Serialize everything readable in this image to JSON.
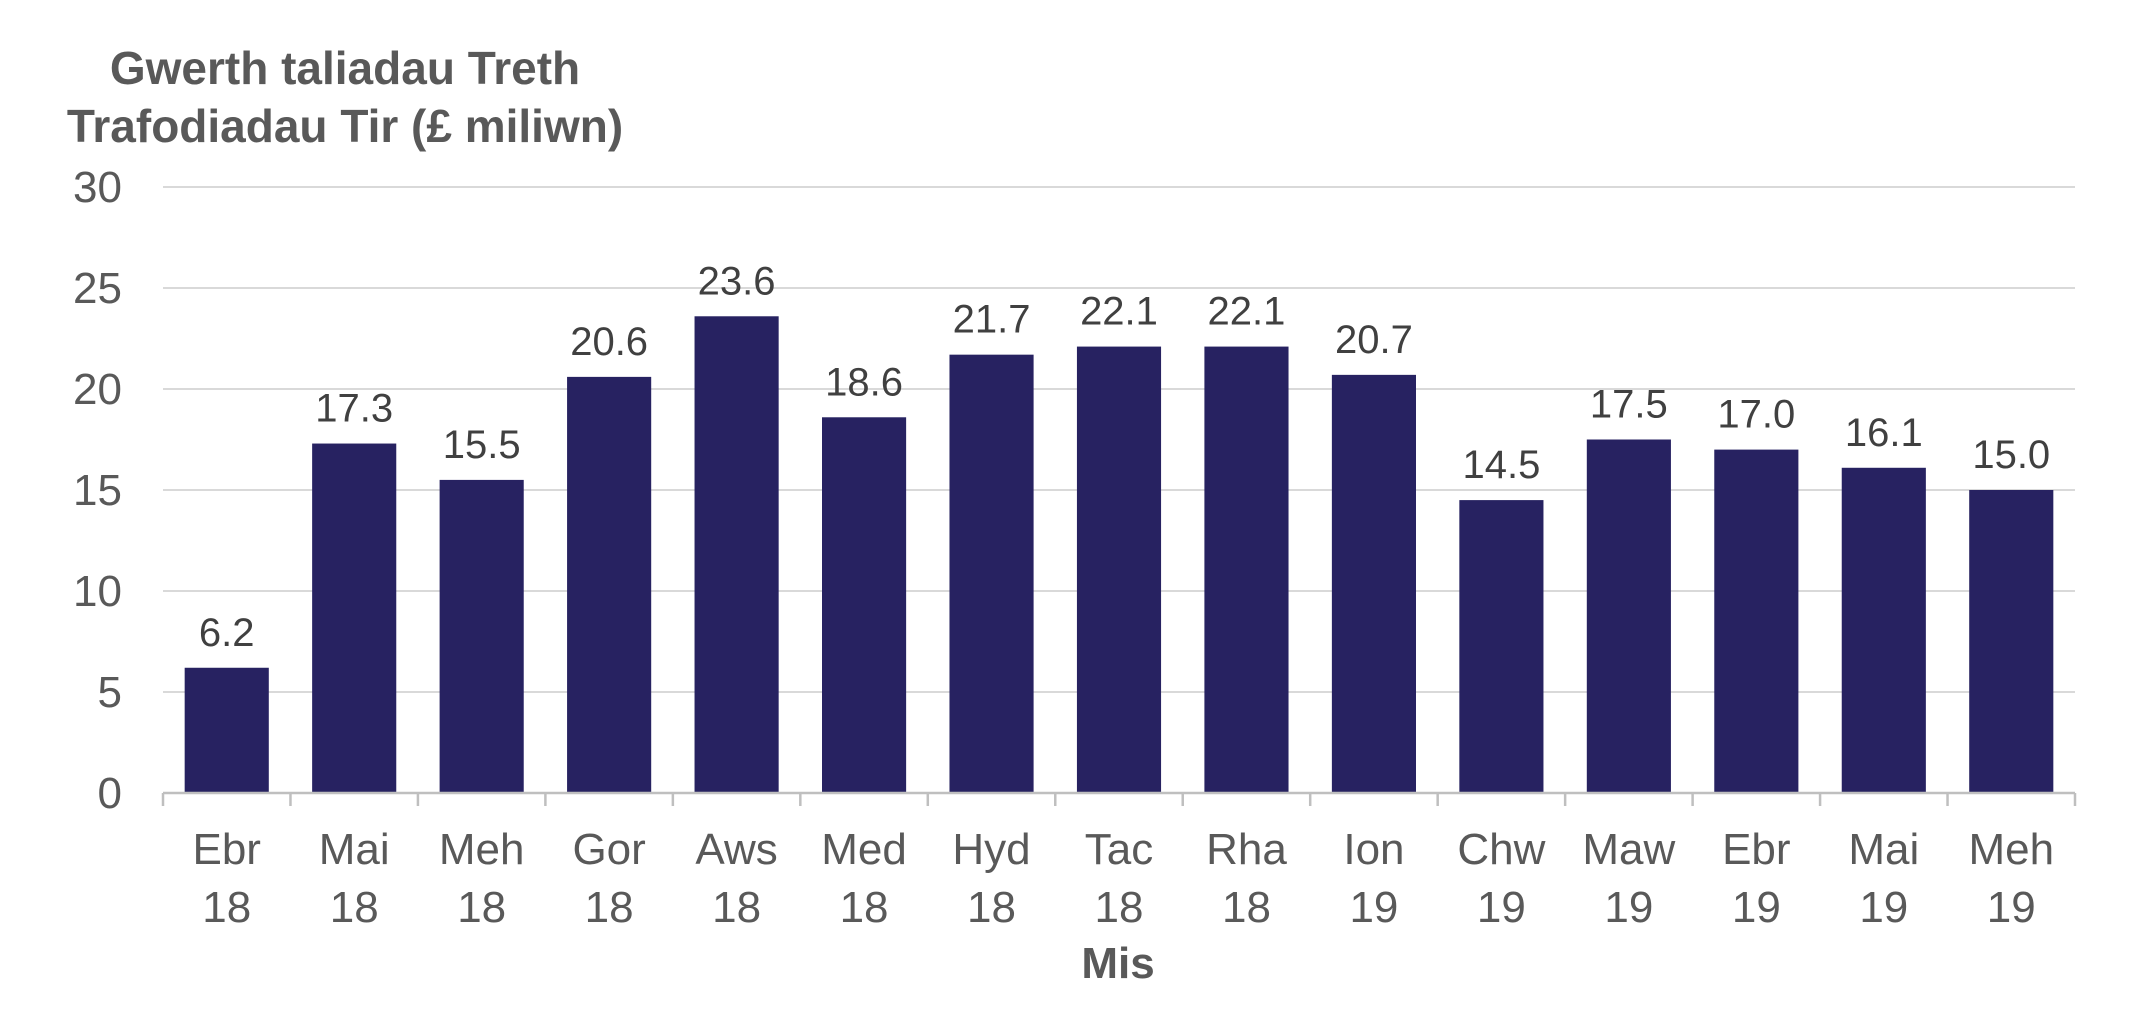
{
  "chart_data": {
    "type": "bar",
    "title_lines": [
      "Gwerth taliadau  Treth",
      "Trafodiadau  Tir (£ miliwn)"
    ],
    "xlabel": "Mis",
    "ylabel": "",
    "ylim": [
      0,
      30
    ],
    "yticks": [
      "0",
      "5",
      "10",
      "15",
      "20",
      "25",
      "30"
    ],
    "grid": true,
    "categories": [
      {
        "month": "Ebr",
        "year": "18"
      },
      {
        "month": "Mai",
        "year": "18"
      },
      {
        "month": "Meh",
        "year": "18"
      },
      {
        "month": "Gor",
        "year": "18"
      },
      {
        "month": "Aws",
        "year": "18"
      },
      {
        "month": "Med",
        "year": "18"
      },
      {
        "month": "Hyd",
        "year": "18"
      },
      {
        "month": "Tac",
        "year": "18"
      },
      {
        "month": "Rha",
        "year": "18"
      },
      {
        "month": "Ion",
        "year": "19"
      },
      {
        "month": "Chw",
        "year": "19"
      },
      {
        "month": "Maw",
        "year": "19"
      },
      {
        "month": "Ebr",
        "year": "19"
      },
      {
        "month": "Mai",
        "year": "19"
      },
      {
        "month": "Meh",
        "year": "19"
      }
    ],
    "values": [
      6.2,
      17.3,
      15.5,
      20.6,
      23.6,
      18.6,
      21.7,
      22.1,
      22.1,
      20.7,
      14.5,
      17.5,
      17.0,
      16.1,
      15.0
    ],
    "labels": [
      "6.2",
      "17.3",
      "15.5",
      "20.6",
      "23.6",
      "18.6",
      "21.7",
      "22.1",
      "22.1",
      "20.7",
      "14.5",
      "17.5",
      "17.0",
      "16.1",
      "15.0"
    ],
    "colors": {
      "bar": "#272261",
      "grid": "#d9d9d9",
      "axis": "#bfbfbf"
    }
  }
}
